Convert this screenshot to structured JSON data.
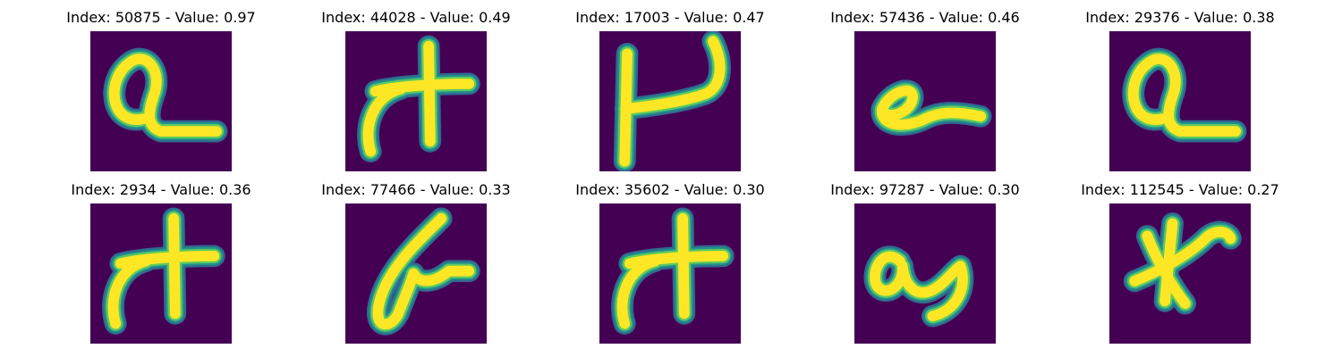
{
  "colormap": {
    "name": "viridis",
    "background": "#440154",
    "mid_low": "#31688e",
    "mid": "#21918c",
    "mid_high": "#5ec962",
    "stroke": "#fde725"
  },
  "panels": [
    {
      "title": "Index: 50875 - Value: 0.97",
      "glyph": "cursive-a-loop"
    },
    {
      "title": "Index: 44028 - Value: 0.49",
      "glyph": "cursive-t"
    },
    {
      "title": "Index: 17003 - Value: 0.47",
      "glyph": "cursive-h"
    },
    {
      "title": "Index: 57436 - Value: 0.46",
      "glyph": "cursive-e-loop"
    },
    {
      "title": "Index: 29376 - Value: 0.38",
      "glyph": "cursive-a-loop"
    },
    {
      "title": "Index: 2934 - Value: 0.36",
      "glyph": "cursive-t"
    },
    {
      "title": "Index: 77466 - Value: 0.33",
      "glyph": "cursive-b"
    },
    {
      "title": "Index: 35602 - Value: 0.30",
      "glyph": "cursive-t"
    },
    {
      "title": "Index: 97287 - Value: 0.30",
      "glyph": "cursive-a3"
    },
    {
      "title": "Index: 112545 - Value: 0.27",
      "glyph": "cursive-x"
    }
  ]
}
